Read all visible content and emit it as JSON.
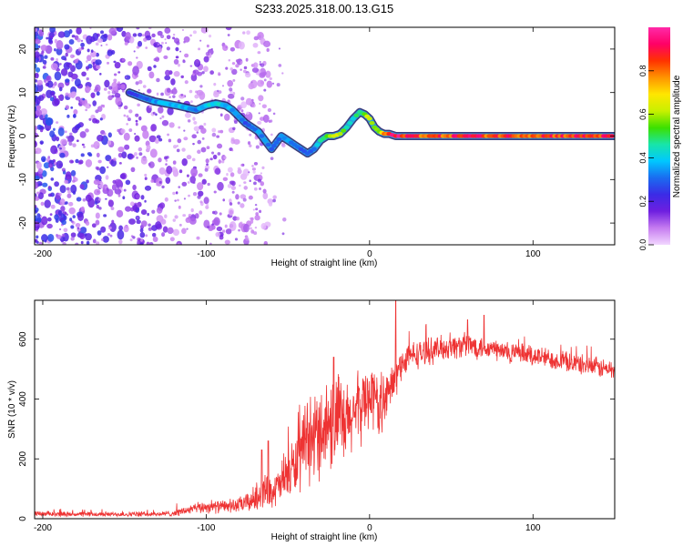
{
  "figure_title": "S233.2025.318.00.13.G15",
  "chart_data": [
    {
      "type": "heatmap",
      "title": "S233.2025.318.00.13.G15",
      "xlabel": "Height of straight line (km)",
      "ylabel": "Frequency (Hz)",
      "xlim": [
        -205,
        150
      ],
      "ylim": [
        -25,
        25
      ],
      "x_ticks": [
        -200,
        -100,
        0,
        100
      ],
      "x_tick_labels": [
        "-200",
        "-100",
        "0",
        "100"
      ],
      "y_ticks": [
        -20,
        -10,
        0,
        10,
        20
      ],
      "y_tick_labels": [
        "-20",
        "-10",
        "0",
        "10",
        "20"
      ],
      "ridge": {
        "name": "dominant frequency",
        "x": [
          -147,
          -140,
          -132,
          -125,
          -118,
          -112,
          -106,
          -100,
          -94,
          -88,
          -84,
          -80,
          -76,
          -72,
          -68,
          -64,
          -60,
          -57,
          -54,
          -50,
          -46,
          -42,
          -38,
          -34,
          -30,
          -26,
          -22,
          -18,
          -14,
          -10,
          -6,
          -3,
          0,
          3,
          6,
          9,
          12,
          16,
          20,
          30,
          40,
          50,
          60,
          70,
          80,
          90,
          100,
          110,
          120,
          130,
          140,
          150
        ],
        "y": [
          10,
          9,
          8,
          7.5,
          7,
          6.5,
          6,
          7,
          7.5,
          7,
          6,
          4.5,
          3,
          2,
          1,
          -1,
          -3,
          -1.5,
          0,
          -1,
          -2,
          -3,
          -4,
          -3,
          -1,
          0,
          0,
          0.5,
          2,
          4,
          5.5,
          5,
          4,
          2,
          1,
          0.5,
          0.5,
          0,
          0,
          0,
          0,
          0,
          0,
          0,
          0,
          0,
          0,
          0,
          0,
          0,
          0,
          0
        ],
        "amplitude": [
          0.25,
          0.3,
          0.35,
          0.4,
          0.4,
          0.4,
          0.35,
          0.45,
          0.45,
          0.4,
          0.35,
          0.35,
          0.3,
          0.3,
          0.35,
          0.35,
          0.3,
          0.3,
          0.35,
          0.35,
          0.3,
          0.3,
          0.3,
          0.35,
          0.45,
          0.55,
          0.7,
          0.6,
          0.5,
          0.45,
          0.5,
          0.6,
          0.65,
          0.6,
          0.6,
          0.8,
          0.9,
          0.95,
          0.95,
          0.9,
          0.85,
          0.9,
          0.95,
          0.9,
          0.9,
          0.9,
          0.9,
          0.9,
          0.9,
          0.9,
          0.9,
          0.9
        ]
      },
      "colorbar": {
        "label": "Normalized spectral amplitude",
        "ticks": [
          0.0,
          0.2,
          0.4,
          0.6,
          0.8
        ],
        "tick_labels": [
          "0.0",
          "0.2",
          "0.4",
          "0.6",
          "0.8"
        ],
        "range": [
          0,
          1
        ],
        "colors": [
          "#f2d6ff",
          "#c67cf0",
          "#6f1fe0",
          "#3b2be6",
          "#1a6cf0",
          "#00c8ff",
          "#18e5a8",
          "#3ce000",
          "#c8f000",
          "#ffe600",
          "#ff9400",
          "#ff3300",
          "#ff0066",
          "#ff2aa8"
        ]
      },
      "noise_region_x": [
        -205,
        -60
      ],
      "noise_level": 0.3
    },
    {
      "type": "line",
      "title": "",
      "xlabel": "Height of straight line (km)",
      "ylabel": "SNR (10 * v/v)",
      "xlim": [
        -205,
        150
      ],
      "ylim": [
        0,
        730
      ],
      "x_ticks": [
        -200,
        -100,
        0,
        100
      ],
      "x_tick_labels": [
        "-200",
        "-100",
        "0",
        "100"
      ],
      "y_ticks": [
        0,
        200,
        400,
        600
      ],
      "y_tick_labels": [
        "0",
        "200",
        "400",
        "600"
      ],
      "color": "#ee3333",
      "series": [
        {
          "name": "SNR",
          "envelope_x": [
            -205,
            -180,
            -150,
            -130,
            -120,
            -110,
            -100,
            -90,
            -80,
            -72,
            -66,
            -60,
            -55,
            -50,
            -45,
            -40,
            -35,
            -30,
            -25,
            -20,
            -15,
            -10,
            -5,
            0,
            5,
            10,
            15,
            20,
            25,
            30,
            40,
            50,
            60,
            70,
            80,
            90,
            100,
            110,
            120,
            130,
            140,
            150
          ],
          "envelope_mean": [
            15,
            15,
            15,
            15,
            18,
            30,
            40,
            40,
            45,
            60,
            90,
            90,
            110,
            150,
            180,
            230,
            260,
            300,
            320,
            330,
            300,
            350,
            380,
            420,
            380,
            400,
            460,
            520,
            545,
            550,
            565,
            575,
            580,
            575,
            560,
            550,
            545,
            535,
            525,
            515,
            505,
            495
          ],
          "envelope_spread": [
            10,
            10,
            10,
            10,
            12,
            20,
            25,
            25,
            30,
            45,
            70,
            60,
            80,
            110,
            120,
            150,
            160,
            180,
            190,
            200,
            170,
            150,
            140,
            130,
            130,
            100,
            90,
            60,
            55,
            55,
            50,
            50,
            50,
            50,
            45,
            45,
            45,
            40,
            40,
            40,
            40,
            40
          ],
          "peaks": [
            [
              16,
              730
            ],
            [
              -66,
              230
            ],
            [
              -62,
              260
            ],
            [
              -22,
              540
            ],
            [
              2,
              470
            ],
            [
              70,
              680
            ],
            [
              60,
              665
            ]
          ]
        }
      ]
    }
  ]
}
